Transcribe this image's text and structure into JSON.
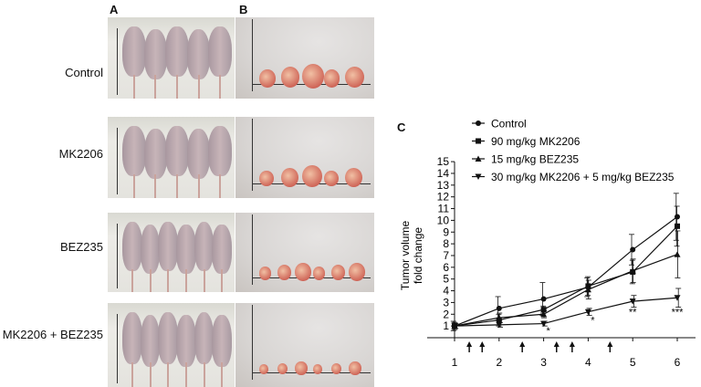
{
  "panels": {
    "a": "A",
    "b": "B",
    "c": "C"
  },
  "rows": [
    {
      "label": "Control",
      "mice": 5,
      "tumors": 5
    },
    {
      "label": "MK2206",
      "mice": 5,
      "tumors": 5
    },
    {
      "label": "BEZ235",
      "mice": 6,
      "tumors": 6
    },
    {
      "label": "MK2206 + BEZ235",
      "mice": 6,
      "tumors": 6
    }
  ],
  "chart_data": {
    "type": "line",
    "title": "",
    "xlabel": "",
    "ylabel": [
      "Tumor volume",
      "fold change"
    ],
    "x": [
      1,
      2,
      3,
      4,
      5,
      6
    ],
    "xticks": [
      "1",
      "2",
      "3",
      "4",
      "5",
      "6"
    ],
    "ylim": [
      0,
      15
    ],
    "yticks": [
      "1",
      "2",
      "3",
      "4",
      "5",
      "6",
      "7",
      "8",
      "9",
      "10",
      "11",
      "12",
      "13",
      "14",
      "15"
    ],
    "legend_position": "top",
    "series": [
      {
        "name": "Control",
        "marker": "circle",
        "values": [
          1.0,
          2.5,
          3.3,
          4.3,
          7.5,
          10.3
        ],
        "errors": [
          0.4,
          1.0,
          1.4,
          0.8,
          1.3,
          2.0
        ]
      },
      {
        "name": "90 mg/kg MK2206",
        "marker": "square",
        "values": [
          1.0,
          1.5,
          2.4,
          4.4,
          5.6,
          9.5
        ],
        "errors": [
          0.3,
          0.5,
          0.3,
          0.8,
          1.0,
          1.7
        ]
      },
      {
        "name": "15 mg/kg BEZ235",
        "marker": "triangle-up",
        "values": [
          1.0,
          1.7,
          2.0,
          4.1,
          5.7,
          7.1
        ],
        "errors": [
          0.3,
          0.4,
          0.3,
          0.8,
          1.0,
          2.0
        ]
      },
      {
        "name": "30 mg/kg MK2206 + 5 mg/kg BEZ235",
        "marker": "triangle-down",
        "values": [
          1.0,
          1.1,
          1.2,
          2.2,
          3.1,
          3.4
        ],
        "errors": [
          0.2,
          0.2,
          0.2,
          0.3,
          0.5,
          0.8
        ]
      }
    ],
    "treatment_arrows_x": [
      1.33,
      1.62,
      2.52,
      3.29,
      3.64,
      4.49
    ],
    "annotations": [
      {
        "x": 3,
        "text": "*"
      },
      {
        "x": 4,
        "text": "*"
      },
      {
        "x": 5,
        "text": "**"
      },
      {
        "x": 6,
        "text": "***"
      }
    ]
  }
}
